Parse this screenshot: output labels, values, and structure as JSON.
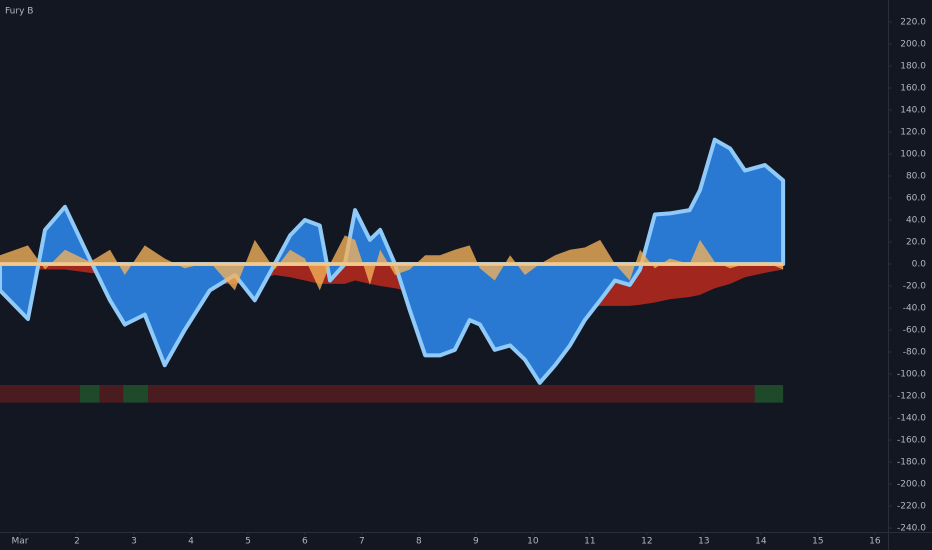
{
  "chart_data": {
    "type": "area",
    "title": "Fury B",
    "x": [
      0.65,
      1.14,
      1.44,
      1.79,
      2.23,
      2.58,
      2.84,
      3.19,
      3.54,
      3.89,
      4.33,
      4.77,
      5.12,
      5.47,
      5.74,
      6.0,
      6.26,
      6.44,
      6.7,
      6.88,
      7.14,
      7.32,
      7.58,
      7.84,
      8.11,
      8.37,
      8.63,
      8.89,
      9.07,
      9.33,
      9.6,
      9.86,
      10.12,
      10.39,
      10.65,
      10.91,
      11.18,
      11.44,
      11.7,
      11.88,
      12.14,
      12.4,
      12.75,
      12.93,
      13.19,
      13.46,
      13.72,
      14.07,
      14.39
    ],
    "series": [
      {
        "color": "#b0281e",
        "values": [
          -5,
          -5,
          -5,
          -5,
          -8,
          -10,
          -12,
          -12,
          -12,
          -15,
          -18,
          -18,
          -15,
          -10,
          -12,
          -15,
          -18,
          -18,
          -18,
          -15,
          -18,
          -20,
          -22,
          -25,
          -25,
          -22,
          -20,
          -22,
          -25,
          -28,
          -30,
          -33,
          -35,
          -38,
          -40,
          -40,
          -38,
          -38,
          -38,
          -37,
          -35,
          -32,
          -30,
          -28,
          -22,
          -18,
          -12,
          -8,
          -5
        ]
      },
      {
        "color": "#2979d2",
        "outline": "#90caf9",
        "values": [
          -24,
          -50,
          31,
          52,
          4,
          -33,
          -55,
          -46,
          -92,
          -60,
          -24,
          -10,
          -33,
          0,
          26,
          40,
          35,
          -15,
          0,
          49,
          22,
          31,
          0,
          -42,
          -83,
          -83,
          -78,
          -51,
          -55,
          -78,
          -74,
          -87,
          -108,
          -92,
          -74,
          -51,
          -33,
          -15,
          -19,
          -5,
          45,
          46,
          49,
          67,
          113,
          105,
          85,
          90,
          76
        ]
      },
      {
        "color": "#f5b25a",
        "values": [
          8,
          17,
          -5,
          13,
          2,
          13,
          -10,
          17,
          5,
          -4,
          2,
          -24,
          22,
          -5,
          13,
          5,
          -24,
          0,
          26,
          22,
          -19,
          13,
          -10,
          -5,
          8,
          8,
          13,
          17,
          -4,
          -15,
          8,
          -10,
          0,
          8,
          13,
          15,
          22,
          0,
          -15,
          13,
          -4,
          5,
          0,
          22,
          2,
          -4,
          0,
          2,
          -5
        ]
      }
    ],
    "state_band": [
      -110,
      -126
    ],
    "state_segments": [
      {
        "x": [
          0.65,
          2.05
        ],
        "color": "#4a1c20"
      },
      {
        "x": [
          2.05,
          2.4
        ],
        "color": "#1e4a2a"
      },
      {
        "x": [
          2.4,
          2.81
        ],
        "color": "#4a1c20"
      },
      {
        "x": [
          2.81,
          3.25
        ],
        "color": "#1e4a2a"
      },
      {
        "x": [
          3.25,
          13.89
        ],
        "color": "#4a1c20"
      },
      {
        "x": [
          13.89,
          14.39
        ],
        "color": "#1e4a2a"
      }
    ],
    "xlim": [
      0.65,
      16.23
    ],
    "xticks": [
      {
        "value": 1,
        "label": "Mar"
      },
      2,
      3,
      4,
      5,
      6,
      7,
      8,
      9,
      10,
      11,
      12,
      13,
      14,
      15,
      16
    ],
    "ylim": [
      -243.6,
      240
    ],
    "yticks": [
      {
        "value": 220,
        "label": "220.0"
      },
      {
        "value": 200,
        "label": "200.0"
      },
      {
        "value": 180,
        "label": "180.0"
      },
      {
        "value": 160,
        "label": "160.0"
      },
      {
        "value": 140,
        "label": "140.0"
      },
      {
        "value": 120,
        "label": "120.0"
      },
      {
        "value": 100,
        "label": "100.0"
      },
      {
        "value": 80,
        "label": "80.0"
      },
      {
        "value": 60,
        "label": "60.0"
      },
      {
        "value": 40,
        "label": "40.0"
      },
      {
        "value": 20,
        "label": "20.0"
      },
      {
        "value": 0,
        "label": "0.0"
      },
      {
        "value": -20,
        "label": "-20.0"
      },
      {
        "value": -40,
        "label": "-40.0"
      },
      {
        "value": -60,
        "label": "-60.0"
      },
      {
        "value": -80,
        "label": "-80.0"
      },
      {
        "value": -100,
        "label": "-100.0"
      },
      {
        "value": -120,
        "label": "-120.0"
      },
      {
        "value": -140,
        "label": "-140.0"
      },
      {
        "value": -160,
        "label": "-160.0"
      },
      {
        "value": -180,
        "label": "-180.0"
      },
      {
        "value": -200,
        "label": "-200.0"
      },
      {
        "value": -220,
        "label": "-220.0"
      },
      {
        "value": -240,
        "label": "-240.0"
      }
    ]
  }
}
